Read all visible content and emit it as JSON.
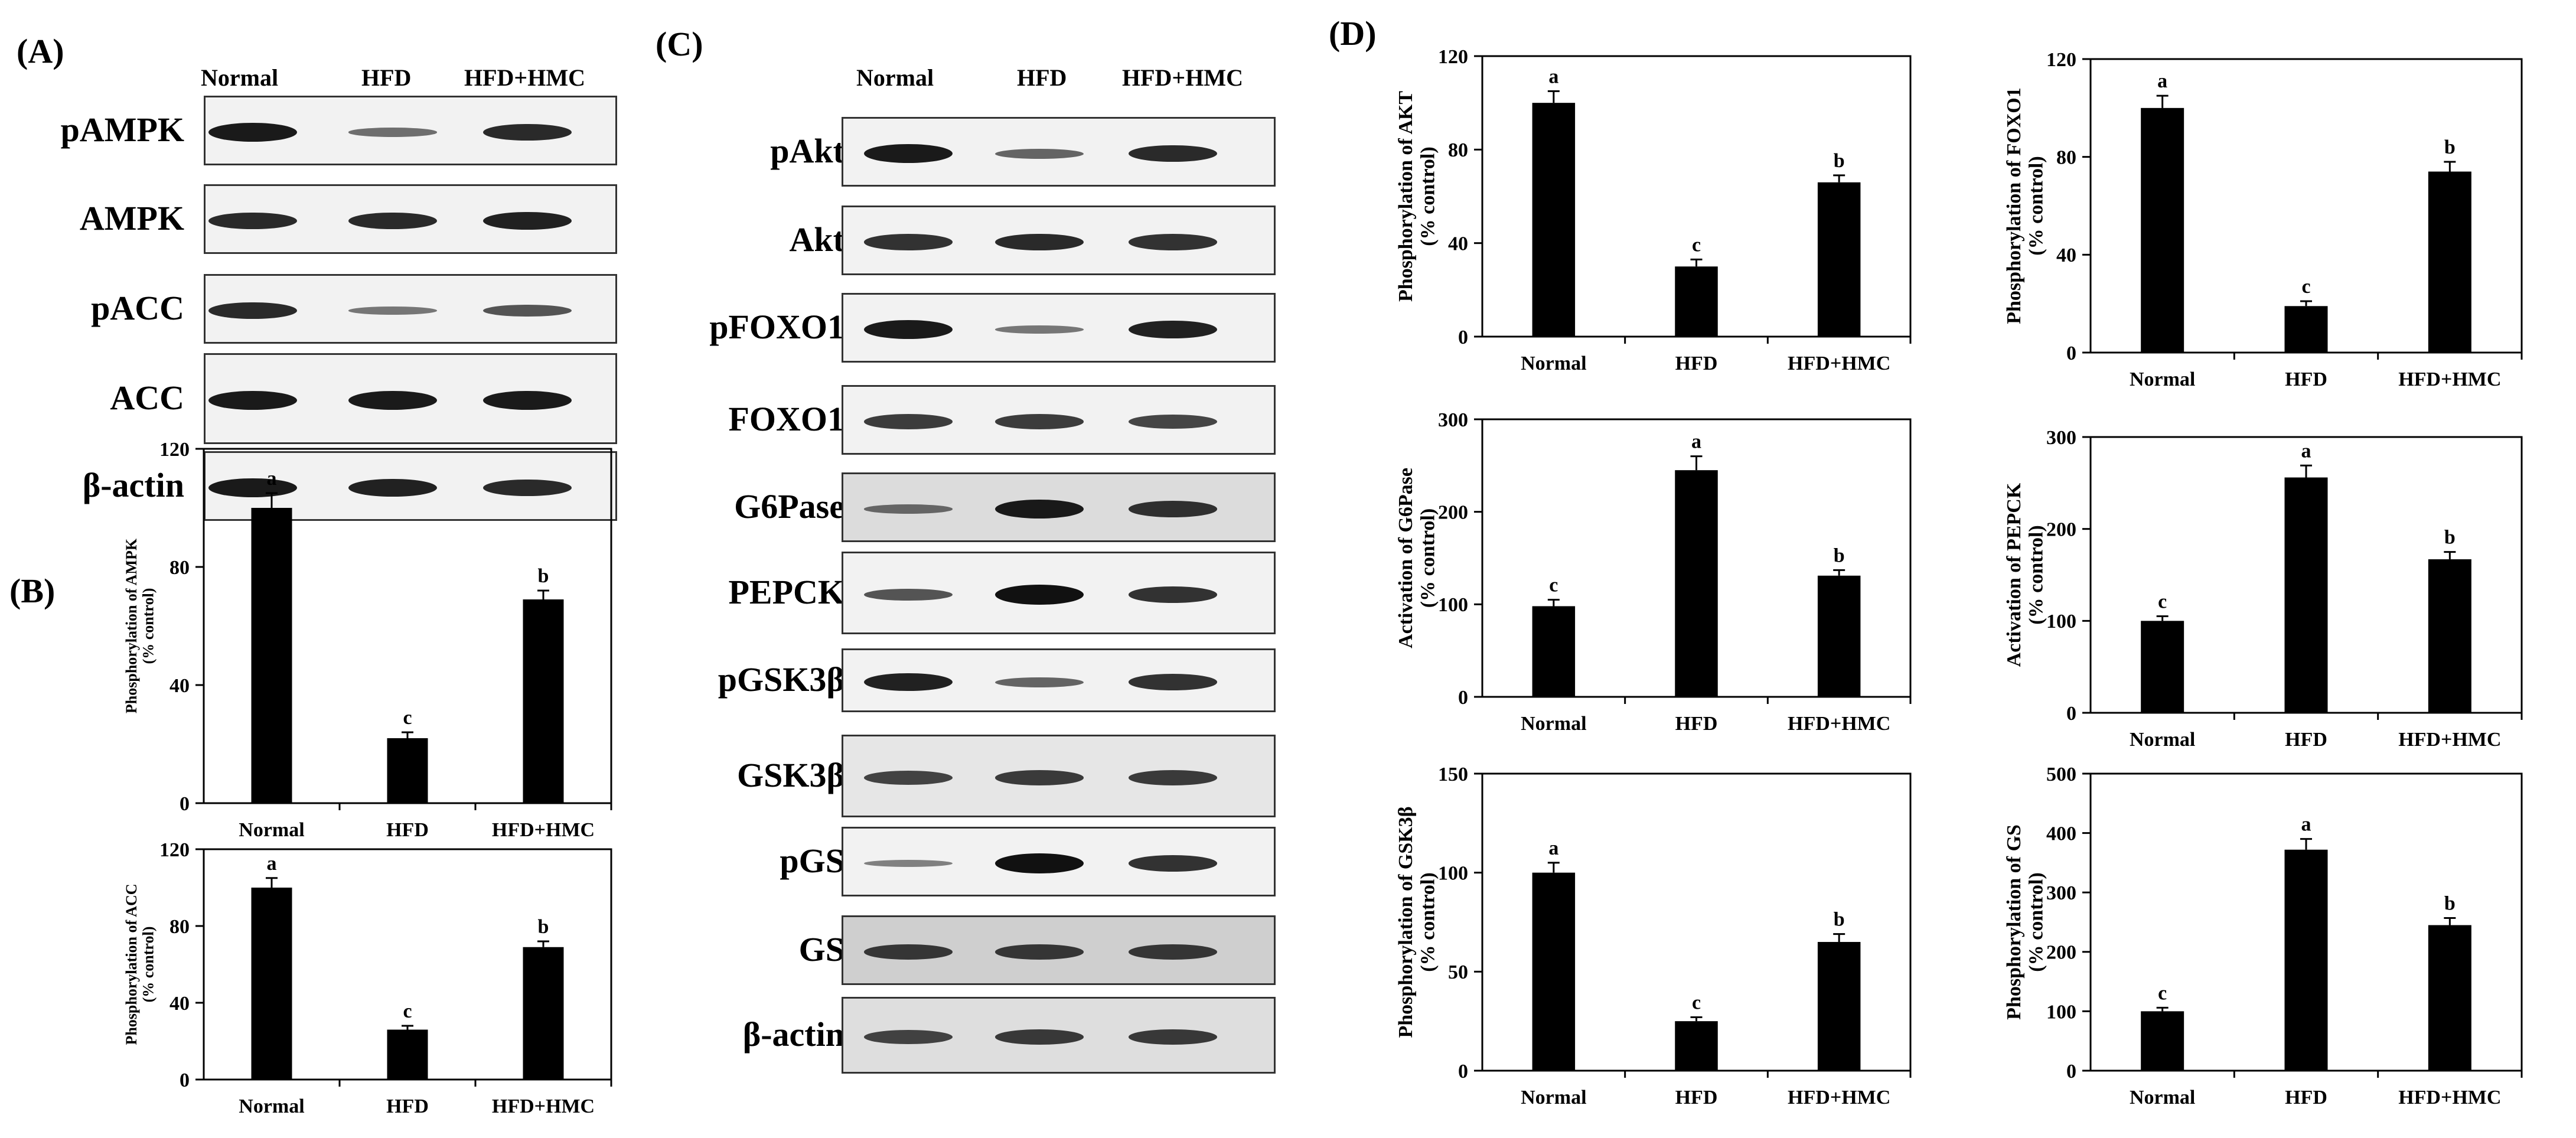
{
  "panels": {
    "A": "(A)",
    "B": "(B)",
    "C": "(C)",
    "D": "(D)"
  },
  "lanes": [
    "Normal",
    "HFD",
    "HFD+HMC"
  ],
  "blot_A": {
    "labels": [
      "pAMPK",
      "AMPK",
      "pACC",
      "ACC",
      "β-actin"
    ],
    "band_intensity": [
      [
        0.95,
        0.45,
        0.85
      ],
      [
        0.85,
        0.85,
        0.9
      ],
      [
        0.85,
        0.4,
        0.6
      ],
      [
        0.95,
        0.95,
        0.95
      ],
      [
        0.95,
        0.9,
        0.85
      ]
    ]
  },
  "blot_C": {
    "labels": [
      "pAkt",
      "Akt",
      "pFOXO1",
      "FOXO1",
      "G6Pase",
      "PEPCK",
      "pGSK3β",
      "GSK3β",
      "pGS",
      "GS",
      "β-actin"
    ],
    "band_intensity": [
      [
        0.95,
        0.5,
        0.85
      ],
      [
        0.8,
        0.85,
        0.8
      ],
      [
        0.95,
        0.4,
        0.9
      ],
      [
        0.75,
        0.75,
        0.7
      ],
      [
        0.45,
        0.95,
        0.8
      ],
      [
        0.6,
        1.0,
        0.8
      ],
      [
        0.9,
        0.5,
        0.8
      ],
      [
        0.7,
        0.75,
        0.75
      ],
      [
        0.35,
        1.0,
        0.8
      ],
      [
        0.75,
        0.75,
        0.75
      ],
      [
        0.7,
        0.75,
        0.75
      ]
    ]
  },
  "chart_data": [
    {
      "id": "B1",
      "type": "bar",
      "categories": [
        "Normal",
        "HFD",
        "HFD+HMC"
      ],
      "values": [
        100,
        22,
        69
      ],
      "errors": [
        5,
        2,
        3
      ],
      "letters": [
        "a",
        "c",
        "b"
      ],
      "ylabel": "Phosphorylation of AMPK",
      "ylabel2": "(% control)",
      "ylim": [
        0,
        120
      ],
      "yticks": [
        0,
        40,
        80,
        120
      ]
    },
    {
      "id": "B2",
      "type": "bar",
      "categories": [
        "Normal",
        "HFD",
        "HFD+HMC"
      ],
      "values": [
        100,
        26,
        69
      ],
      "errors": [
        5,
        2,
        3
      ],
      "letters": [
        "a",
        "c",
        "b"
      ],
      "ylabel": "Phosphorylation of ACC",
      "ylabel2": "(% control)",
      "ylim": [
        0,
        120
      ],
      "yticks": [
        0,
        40,
        80,
        120
      ]
    },
    {
      "id": "D1",
      "type": "bar",
      "categories": [
        "Normal",
        "HFD",
        "HFD+HMC"
      ],
      "values": [
        100,
        30,
        66
      ],
      "errors": [
        5,
        3,
        3
      ],
      "letters": [
        "a",
        "c",
        "b"
      ],
      "ylabel": "Phosphorylation  of AKT",
      "ylabel2": "(% control)",
      "ylim": [
        0,
        120
      ],
      "yticks": [
        0,
        40,
        80,
        120
      ]
    },
    {
      "id": "D2",
      "type": "bar",
      "categories": [
        "Normal",
        "HFD",
        "HFD+HMC"
      ],
      "values": [
        100,
        19,
        74
      ],
      "errors": [
        5,
        2,
        4
      ],
      "letters": [
        "a",
        "c",
        "b"
      ],
      "ylabel": "Phosphorylation of FOXO1",
      "ylabel2": "(% control)",
      "ylim": [
        0,
        120
      ],
      "yticks": [
        0,
        40,
        80,
        120
      ]
    },
    {
      "id": "D3",
      "type": "bar",
      "categories": [
        "Normal",
        "HFD",
        "HFD+HMC"
      ],
      "values": [
        98,
        245,
        131
      ],
      "errors": [
        7,
        15,
        6
      ],
      "letters": [
        "c",
        "a",
        "b"
      ],
      "ylabel": "Activation  of G6Pase",
      "ylabel2": "(% control)",
      "ylim": [
        0,
        300
      ],
      "yticks": [
        0,
        100,
        200,
        300
      ]
    },
    {
      "id": "D4",
      "type": "bar",
      "categories": [
        "Normal",
        "HFD",
        "HFD+HMC"
      ],
      "values": [
        100,
        256,
        167
      ],
      "errors": [
        5,
        13,
        8
      ],
      "letters": [
        "c",
        "a",
        "b"
      ],
      "ylabel": "Activation of PEPCK",
      "ylabel2": "(% control)",
      "ylim": [
        0,
        300
      ],
      "yticks": [
        0,
        100,
        200,
        300
      ]
    },
    {
      "id": "D5",
      "type": "bar",
      "categories": [
        "Normal",
        "HFD",
        "HFD+HMC"
      ],
      "values": [
        100,
        25,
        65
      ],
      "errors": [
        5,
        2,
        4
      ],
      "letters": [
        "a",
        "c",
        "b"
      ],
      "ylabel": "Phosphorylation of GSK3β",
      "ylabel2": "(% control)",
      "ylim": [
        0,
        150
      ],
      "yticks": [
        0,
        50,
        100,
        150
      ]
    },
    {
      "id": "D6",
      "type": "bar",
      "categories": [
        "Normal",
        "HFD",
        "HFD+HMC"
      ],
      "values": [
        100,
        372,
        245
      ],
      "errors": [
        6,
        18,
        12
      ],
      "letters": [
        "c",
        "a",
        "b"
      ],
      "ylabel": "Phosphorylation of GS",
      "ylabel2": "(% control)",
      "ylim": [
        0,
        500
      ],
      "yticks": [
        0,
        100,
        200,
        300,
        400,
        500
      ]
    }
  ]
}
